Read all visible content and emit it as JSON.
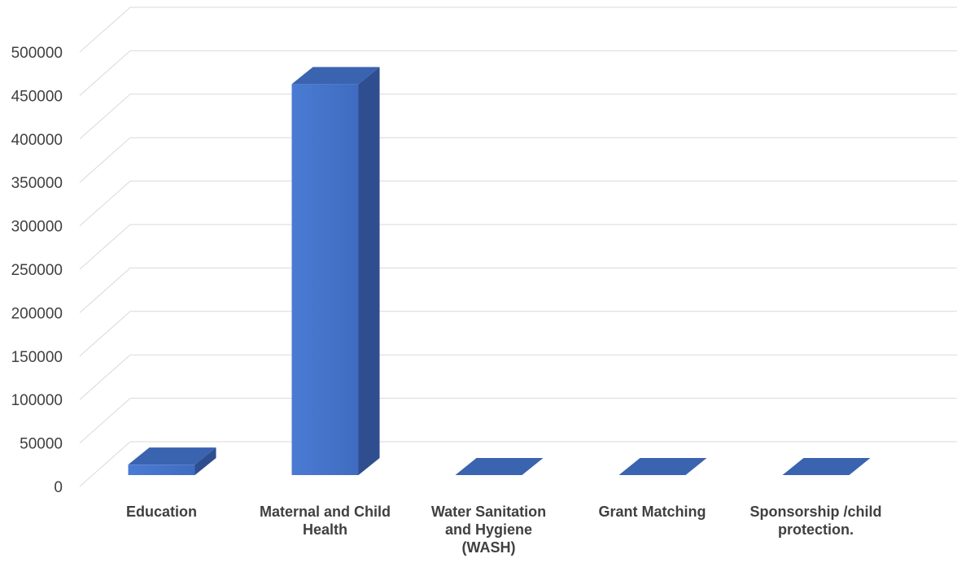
{
  "chart_data": {
    "type": "bar",
    "style": "3d-column",
    "categories": [
      "Education",
      "Maternal and Child Health",
      "Water Sanitation and Hygiene (WASH)",
      "Grant Matching",
      "Sponsorship /child protection."
    ],
    "category_label_lines": [
      [
        "Education"
      ],
      [
        "Maternal and Child",
        "Health"
      ],
      [
        "Water Sanitation",
        "and Hygiene",
        "(WASH)"
      ],
      [
        "Grant Matching"
      ],
      [
        "Sponsorship /child",
        "protection."
      ]
    ],
    "values": [
      12000,
      450000,
      0,
      0,
      0
    ],
    "ylim": [
      0,
      500000
    ],
    "yticks": [
      0,
      50000,
      100000,
      150000,
      200000,
      250000,
      300000,
      350000,
      400000,
      450000,
      500000
    ],
    "ytick_labels": [
      "0",
      "50000",
      "100000",
      "150000",
      "200000",
      "250000",
      "300000",
      "350000",
      "400000",
      "450000",
      "500000"
    ],
    "grid": true,
    "legend": "none",
    "title": "",
    "xlabel": "",
    "ylabel": "",
    "colors": {
      "bar_front": "#4472C4",
      "bar_front_light": "#4a7bd3",
      "bar_side": "#2E4E8F",
      "bar_top": "#3A63B0",
      "grid": "#D9D9D9",
      "text": "#404040"
    }
  }
}
